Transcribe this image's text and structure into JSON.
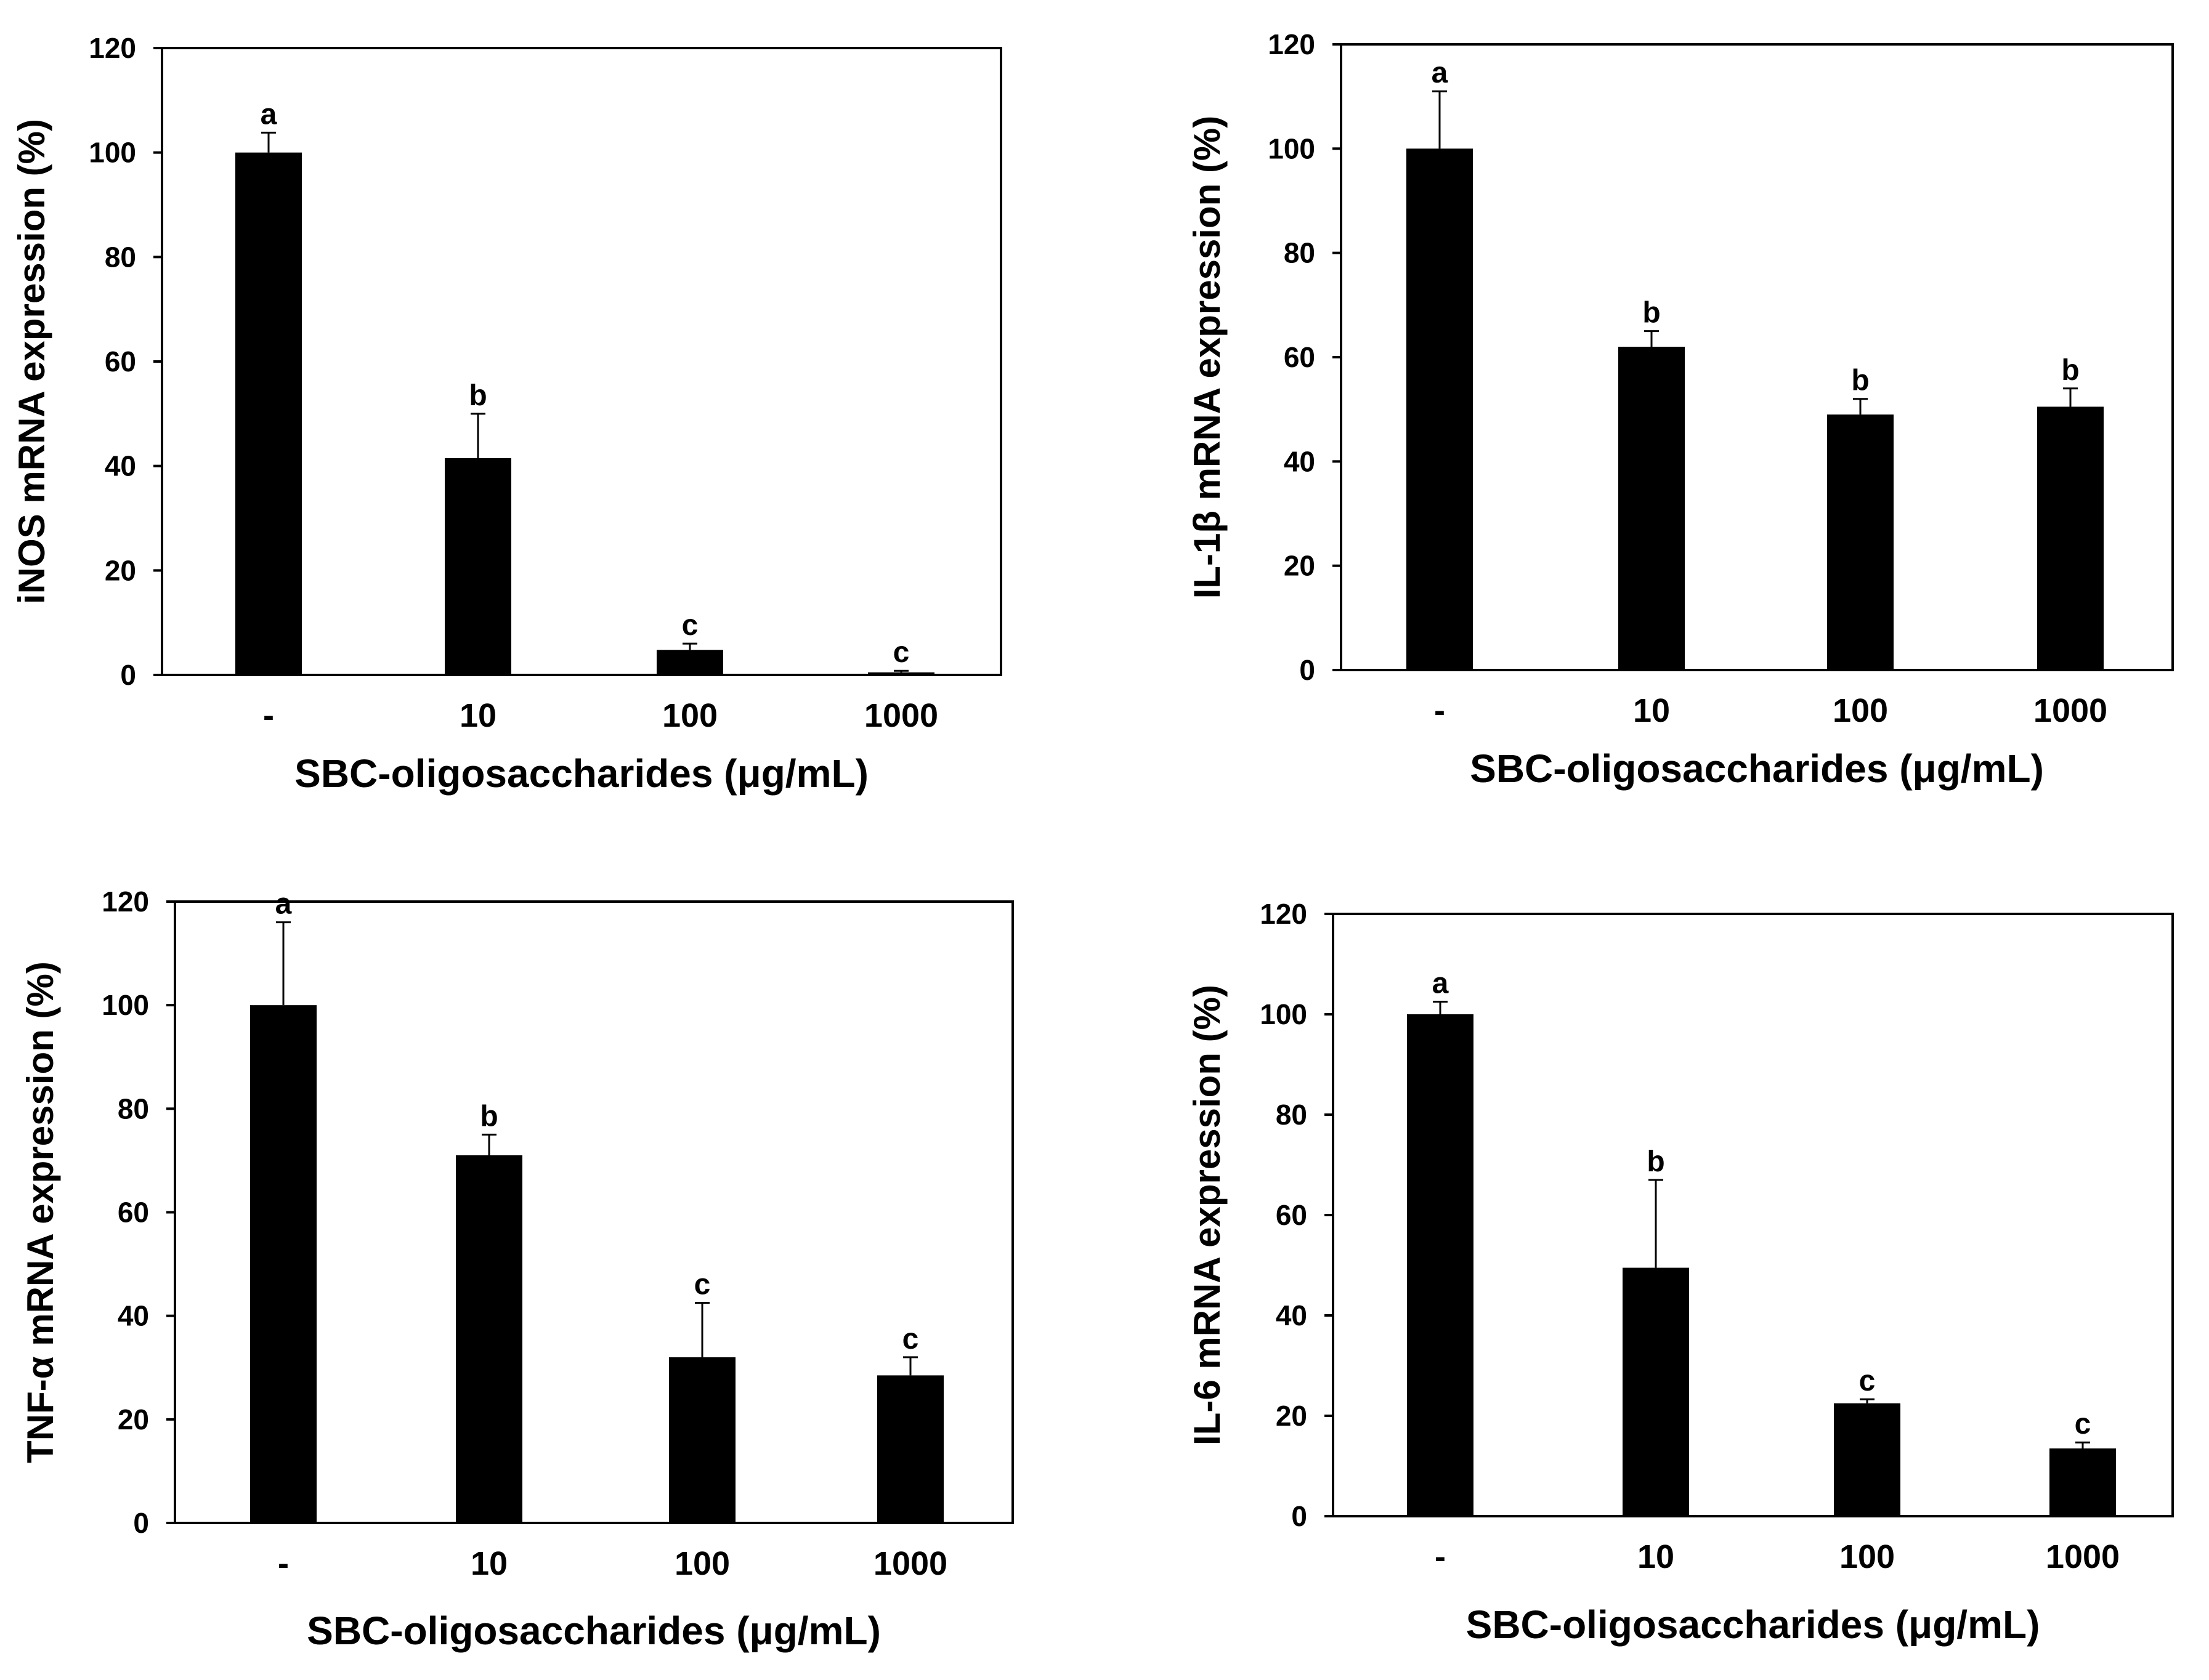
{
  "chart_data": [
    {
      "type": "bar",
      "title": "",
      "xlabel": "SBC-oligosaccharides (μg/mL)",
      "ylabel": "iNOS mRNA expression (%)",
      "categories": [
        "-",
        "10",
        "100",
        "1000"
      ],
      "values": [
        100,
        41.5,
        4.8,
        0.5
      ],
      "errors": [
        3.8,
        8.5,
        1.2,
        0.3
      ],
      "significance": [
        "a",
        "b",
        "c",
        "c"
      ],
      "ylim": [
        0,
        120
      ],
      "yticks": [
        "0",
        "20",
        "40",
        "60",
        "80",
        "100",
        "120"
      ],
      "grid": false,
      "color": "#000000"
    },
    {
      "type": "bar",
      "title": "",
      "xlabel": "SBC-oligosaccharides (μg/mL)",
      "ylabel": "IL-1β mRNA expression (%)",
      "categories": [
        "-",
        "10",
        "100",
        "1000"
      ],
      "values": [
        100,
        62,
        49,
        50.5
      ],
      "errors": [
        11,
        3,
        3,
        3.5
      ],
      "significance": [
        "a",
        "b",
        "b",
        "b"
      ],
      "ylim": [
        0,
        120
      ],
      "yticks": [
        "0",
        "20",
        "40",
        "60",
        "80",
        "100",
        "120"
      ],
      "grid": false,
      "color": "#000000"
    },
    {
      "type": "bar",
      "title": "",
      "xlabel": "SBC-oligosaccharides (μg/mL)",
      "ylabel": "TNF-α mRNA expression (%)",
      "categories": [
        "-",
        "10",
        "100",
        "1000"
      ],
      "values": [
        100,
        71,
        32,
        28.5
      ],
      "errors": [
        16,
        4,
        10.5,
        3.5
      ],
      "significance": [
        "a",
        "b",
        "c",
        "c"
      ],
      "ylim": [
        0,
        120
      ],
      "yticks": [
        "0",
        "20",
        "40",
        "60",
        "80",
        "100",
        "120"
      ],
      "grid": false,
      "color": "#000000"
    },
    {
      "type": "bar",
      "title": "",
      "xlabel": "SBC-oligosaccharides (μg/mL)",
      "ylabel": "IL-6 mRNA expression (%)",
      "categories": [
        "-",
        "10",
        "100",
        "1000"
      ],
      "values": [
        100,
        49.5,
        22.5,
        13.5
      ],
      "errors": [
        2.5,
        17.5,
        0.8,
        1.2
      ],
      "significance": [
        "a",
        "b",
        "c",
        "c"
      ],
      "ylim": [
        0,
        120
      ],
      "yticks": [
        "0",
        "20",
        "40",
        "60",
        "80",
        "100",
        "120"
      ],
      "grid": false,
      "color": "#000000"
    }
  ]
}
